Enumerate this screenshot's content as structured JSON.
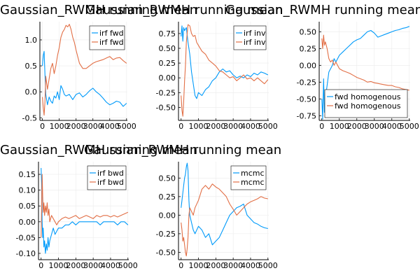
{
  "colors": {
    "series1": "#009AFA",
    "series2": "#E26F46",
    "grid": "#ebebeb",
    "axis": "#000000"
  },
  "chart_data": [
    {
      "type": "line",
      "title": "Gaussian_RWMH running mean",
      "xlabel": "",
      "ylabel": "",
      "xlim": [
        -150,
        5050
      ],
      "ylim": [
        -0.55,
        1.35
      ],
      "xticks": [
        0,
        1000,
        2000,
        3000,
        4000,
        5000
      ],
      "xtick_labels": [
        "0",
        "1000",
        "2000",
        "3000",
        "4000",
        "5000"
      ],
      "yticks": [
        -0.5,
        0.0,
        0.5,
        1.0
      ],
      "ytick_labels": [
        "-0.5",
        "0.0",
        "0.5",
        "1.0"
      ],
      "legend": "top-right",
      "series": [
        {
          "name": "irf fwd",
          "x": [
            0,
            50,
            100,
            150,
            200,
            300,
            400,
            500,
            600,
            700,
            800,
            900,
            1000,
            1100,
            1200,
            1300,
            1400,
            1600,
            1800,
            2000,
            2200,
            2400,
            2600,
            2800,
            3000,
            3200,
            3400,
            3600,
            3800,
            4000,
            4200,
            4400,
            4600,
            4800,
            5000
          ],
          "y": [
            0.5,
            0.7,
            0.78,
            0.35,
            -0.05,
            -0.25,
            -0.1,
            -0.18,
            -0.22,
            -0.08,
            -0.12,
            0.0,
            -0.15,
            0.12,
            0.05,
            -0.05,
            -0.08,
            -0.05,
            -0.15,
            -0.05,
            -0.02,
            -0.1,
            -0.05,
            0.02,
            0.07,
            0.0,
            -0.05,
            -0.12,
            -0.2,
            -0.25,
            -0.22,
            -0.18,
            -0.2,
            -0.28,
            -0.22
          ]
        },
        {
          "name": "irf fwd",
          "x": [
            0,
            50,
            100,
            150,
            200,
            300,
            400,
            500,
            600,
            700,
            800,
            900,
            1000,
            1100,
            1200,
            1300,
            1400,
            1500,
            1600,
            1700,
            1800,
            1900,
            2000,
            2200,
            2400,
            2600,
            2800,
            3000,
            3200,
            3400,
            3600,
            3800,
            4000,
            4200,
            4400,
            4600,
            4800,
            5000
          ],
          "y": [
            -0.1,
            -0.3,
            -0.45,
            -0.2,
            0.3,
            0.05,
            0.25,
            0.45,
            0.55,
            0.35,
            0.5,
            0.7,
            0.85,
            1.05,
            1.15,
            1.2,
            1.28,
            1.25,
            1.3,
            1.2,
            1.05,
            0.95,
            0.8,
            0.55,
            0.45,
            0.45,
            0.5,
            0.55,
            0.58,
            0.6,
            0.62,
            0.65,
            0.68,
            0.62,
            0.65,
            0.66,
            0.6,
            0.55
          ]
        }
      ]
    },
    {
      "type": "line",
      "title": "Gaussian_RWMH running mean",
      "xlabel": "",
      "ylabel": "",
      "xlim": [
        -150,
        5050
      ],
      "ylim": [
        -0.72,
        0.95
      ],
      "xticks": [
        0,
        1000,
        2000,
        3000,
        4000,
        5000
      ],
      "xtick_labels": [
        "0",
        "1000",
        "2000",
        "3000",
        "4000",
        "5000"
      ],
      "yticks": [
        -0.5,
        -0.25,
        0.0,
        0.25,
        0.5,
        0.75
      ],
      "ytick_labels": [
        "-0.50",
        "-0.25",
        "0.00",
        "0.25",
        "0.50",
        "0.75"
      ],
      "legend": "top-right",
      "series": [
        {
          "name": "irf inv",
          "x": [
            0,
            50,
            100,
            150,
            200,
            300,
            400,
            500,
            600,
            700,
            800,
            900,
            1000,
            1200,
            1400,
            1600,
            1800,
            2000,
            2200,
            2400,
            2600,
            2800,
            3000,
            3200,
            3400,
            3600,
            3800,
            4000,
            4200,
            4400,
            4600,
            4800,
            5000
          ],
          "y": [
            0.7,
            0.88,
            0.62,
            0.85,
            0.8,
            0.85,
            0.6,
            0.4,
            0.1,
            -0.1,
            -0.3,
            -0.35,
            -0.25,
            -0.3,
            -0.2,
            -0.15,
            -0.05,
            0.0,
            0.1,
            0.15,
            0.1,
            0.12,
            0.05,
            0.0,
            0.03,
            0.0,
            0.05,
            0.02,
            0.08,
            0.05,
            0.1,
            0.08,
            0.05
          ]
        },
        {
          "name": "irf inv",
          "x": [
            0,
            50,
            100,
            150,
            200,
            250,
            300,
            400,
            500,
            600,
            700,
            800,
            900,
            1000,
            1200,
            1400,
            1600,
            1800,
            2000,
            2200,
            2400,
            2600,
            2800,
            3000,
            3200,
            3400,
            3600,
            3800,
            4000,
            4200,
            4400,
            4600,
            4800,
            5000
          ],
          "y": [
            -0.3,
            -0.55,
            -0.65,
            -0.4,
            -0.05,
            0.2,
            0.6,
            0.9,
            0.88,
            0.75,
            0.7,
            0.72,
            0.6,
            0.55,
            0.45,
            0.4,
            0.3,
            0.25,
            0.2,
            0.12,
            0.1,
            0.05,
            0.0,
            0.02,
            -0.05,
            0.0,
            0.05,
            -0.02,
            0.0,
            -0.05,
            0.0,
            -0.05,
            -0.1,
            -0.03
          ]
        }
      ]
    },
    {
      "type": "line",
      "title": "Gaussian_RWMH running mean",
      "xlabel": "",
      "ylabel": "",
      "xlim": [
        -150,
        5050
      ],
      "ylim": [
        -0.82,
        0.65
      ],
      "xticks": [
        0,
        1000,
        2000,
        3000,
        4000,
        5000
      ],
      "xtick_labels": [
        "0",
        "1000",
        "2000",
        "3000",
        "4000",
        "5000"
      ],
      "yticks": [
        -0.75,
        -0.5,
        -0.25,
        0.0,
        0.25,
        0.5
      ],
      "ytick_labels": [
        "-0.75",
        "-0.50",
        "-0.25",
        "0.00",
        "0.25",
        "0.50"
      ],
      "legend": "bottom-right",
      "series": [
        {
          "name": "fwd homogenous",
          "x": [
            0,
            50,
            100,
            150,
            200,
            300,
            400,
            500,
            600,
            700,
            800,
            1000,
            1200,
            1400,
            1600,
            1800,
            2000,
            2200,
            2400,
            2600,
            2800,
            3000,
            3200,
            3400,
            3600,
            3800,
            4000,
            4200,
            4400,
            4600,
            4800,
            5000
          ],
          "y": [
            -0.5,
            -0.8,
            -0.2,
            -0.7,
            -0.5,
            -0.3,
            -0.1,
            -0.05,
            0.0,
            0.1,
            0.05,
            0.15,
            0.2,
            0.25,
            0.3,
            0.35,
            0.38,
            0.4,
            0.45,
            0.5,
            0.52,
            0.48,
            0.42,
            0.44,
            0.46,
            0.48,
            0.5,
            0.52,
            0.53,
            0.55,
            0.56,
            0.58
          ]
        },
        {
          "name": "fwd homogenous",
          "x": [
            0,
            50,
            100,
            150,
            200,
            300,
            400,
            500,
            600,
            700,
            800,
            1000,
            1200,
            1400,
            1600,
            1800,
            2000,
            2200,
            2400,
            2600,
            2800,
            3000,
            3200,
            3400,
            3600,
            3800,
            4000,
            4200,
            4400,
            4600,
            4800,
            5000
          ],
          "y": [
            0.4,
            0.25,
            0.45,
            0.3,
            0.35,
            0.25,
            0.1,
            0.05,
            0.08,
            0.0,
            0.05,
            -0.05,
            -0.08,
            -0.1,
            -0.12,
            -0.15,
            -0.18,
            -0.2,
            -0.22,
            -0.25,
            -0.24,
            -0.26,
            -0.27,
            -0.28,
            -0.29,
            -0.3,
            -0.3,
            -0.32,
            -0.33,
            -0.35,
            -0.36,
            -0.37
          ]
        }
      ]
    },
    {
      "type": "line",
      "title": "Gaussian_RWMH running mean",
      "xlabel": "",
      "ylabel": "",
      "xlim": [
        -150,
        5050
      ],
      "ylim": [
        -0.12,
        0.19
      ],
      "xticks": [
        0,
        1000,
        2000,
        3000,
        4000,
        5000
      ],
      "xtick_labels": [
        "0",
        "1000",
        "2000",
        "3000",
        "4000",
        "5000"
      ],
      "yticks": [
        -0.1,
        -0.05,
        0.0,
        0.05,
        0.1,
        0.15
      ],
      "ytick_labels": [
        "-0.10",
        "-0.05",
        "0.00",
        "0.05",
        "0.10",
        "0.15"
      ],
      "legend": "top-right",
      "series": [
        {
          "name": "irf bwd",
          "x": [
            0,
            30,
            60,
            90,
            120,
            160,
            200,
            250,
            300,
            350,
            400,
            450,
            500,
            600,
            700,
            800,
            900,
            1000,
            1200,
            1400,
            1600,
            1800,
            2000,
            2200,
            2400,
            2600,
            2800,
            3000,
            3200,
            3400,
            3600,
            3800,
            4000,
            4200,
            4400,
            4600,
            4800,
            5000
          ],
          "y": [
            0.17,
            0.12,
            0.0,
            -0.05,
            -0.02,
            -0.08,
            -0.06,
            -0.1,
            -0.07,
            -0.09,
            -0.05,
            -0.08,
            -0.06,
            -0.04,
            -0.02,
            -0.04,
            -0.03,
            -0.02,
            -0.02,
            -0.01,
            -0.01,
            0.0,
            -0.01,
            0.0,
            0.0,
            0.0,
            0.0,
            0.0,
            0.0,
            -0.01,
            0.0,
            0.0,
            0.0,
            0.0,
            -0.01,
            0.0,
            0.0,
            -0.01
          ]
        },
        {
          "name": "irf bwd",
          "x": [
            0,
            30,
            60,
            90,
            120,
            160,
            200,
            250,
            300,
            350,
            400,
            450,
            500,
            600,
            700,
            800,
            900,
            1000,
            1200,
            1400,
            1600,
            1800,
            2000,
            2200,
            2400,
            2600,
            2800,
            3000,
            3200,
            3400,
            3600,
            3800,
            4000,
            4200,
            4400,
            4600,
            4800,
            5000
          ],
          "y": [
            -0.05,
            0.05,
            0.15,
            0.08,
            0.03,
            0.06,
            0.02,
            0.05,
            0.03,
            0.06,
            0.02,
            0.04,
            0.0,
            0.02,
            0.01,
            0.0,
            -0.01,
            0.0,
            0.01,
            0.015,
            0.01,
            0.015,
            0.02,
            0.01,
            0.015,
            0.02,
            0.015,
            0.01,
            0.02,
            0.015,
            0.02,
            0.02,
            0.015,
            0.02,
            0.015,
            0.02,
            0.025,
            0.03
          ]
        }
      ]
    },
    {
      "type": "line",
      "title": "Gaussian_RWMH running mean",
      "xlabel": "",
      "ylabel": "",
      "xlim": [
        -150,
        5050
      ],
      "ylim": [
        -0.6,
        0.72
      ],
      "xticks": [
        0,
        1000,
        2000,
        3000,
        4000,
        5000
      ],
      "xtick_labels": [
        "0",
        "1000",
        "2000",
        "3000",
        "4000",
        "5000"
      ],
      "yticks": [
        -0.5,
        -0.25,
        0.0,
        0.25,
        0.5
      ],
      "ytick_labels": [
        "-0.50",
        "-0.25",
        "0.00",
        "0.25",
        "0.50"
      ],
      "legend": "top-right",
      "series": [
        {
          "name": "mcmc",
          "x": [
            0,
            50,
            100,
            150,
            200,
            250,
            300,
            350,
            400,
            450,
            500,
            600,
            700,
            800,
            1000,
            1200,
            1400,
            1600,
            1800,
            2000,
            2200,
            2400,
            2600,
            2800,
            3000,
            3200,
            3400,
            3600,
            3800,
            4000,
            4200,
            4400,
            4600,
            4800,
            5000
          ],
          "y": [
            0.1,
            0.2,
            0.3,
            0.4,
            0.5,
            0.55,
            0.65,
            0.7,
            0.6,
            0.2,
            0.0,
            -0.1,
            -0.2,
            -0.25,
            -0.15,
            -0.2,
            -0.3,
            -0.25,
            -0.4,
            -0.35,
            -0.3,
            -0.2,
            -0.1,
            0.0,
            0.05,
            0.1,
            0.12,
            0.15,
            0.0,
            -0.05,
            -0.1,
            -0.12,
            -0.15,
            -0.17,
            -0.18
          ]
        },
        {
          "name": "mcmc",
          "x": [
            0,
            50,
            100,
            150,
            200,
            250,
            300,
            350,
            400,
            450,
            500,
            600,
            700,
            800,
            1000,
            1200,
            1400,
            1600,
            1800,
            2000,
            2200,
            2400,
            2600,
            2800,
            3000,
            3200,
            3400,
            3600,
            3800,
            4000,
            4200,
            4400,
            4600,
            4800,
            5000
          ],
          "y": [
            -0.1,
            -0.2,
            -0.35,
            -0.3,
            -0.4,
            -0.5,
            -0.55,
            -0.45,
            -0.3,
            0.0,
            0.1,
            0.05,
            0.0,
            0.1,
            0.2,
            0.35,
            0.4,
            0.35,
            0.42,
            0.38,
            0.35,
            0.3,
            0.25,
            0.15,
            0.08,
            0.0,
            0.05,
            0.1,
            0.15,
            0.18,
            0.2,
            0.22,
            0.25,
            0.23,
            0.22
          ]
        }
      ]
    }
  ]
}
